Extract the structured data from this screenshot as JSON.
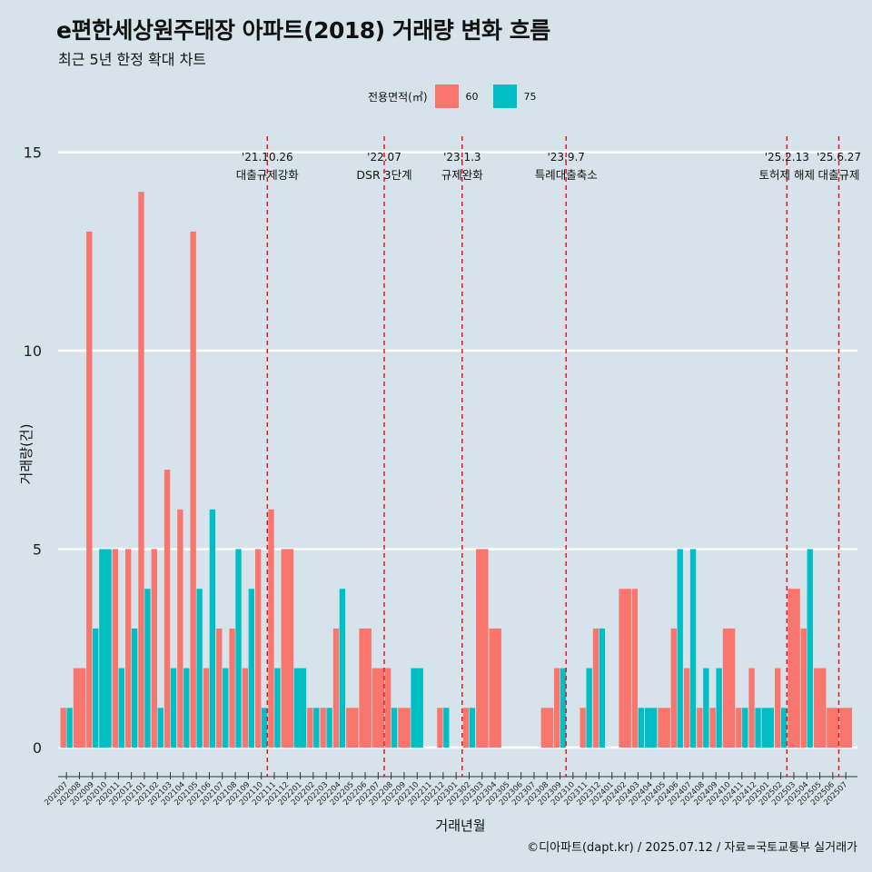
{
  "header": {
    "title": "e편한세상원주태장 아파트(2018) 거래량 변화 흐름",
    "subtitle": "최근 5년 한정 확대 차트"
  },
  "legend": {
    "title": "전용면적(㎡)",
    "items": [
      {
        "label": "60",
        "color": "#f8766d"
      },
      {
        "label": "75",
        "color": "#00bfc4"
      }
    ]
  },
  "caption": "©디아파트(dapt.kr) / 2025.07.12 / 자료=국토교통부 실거래가",
  "chart_data": {
    "type": "bar",
    "xlabel": "거래년월",
    "ylabel": "거래량(건)",
    "ylim": [
      0,
      15
    ],
    "yticks": [
      0,
      5,
      10,
      15
    ],
    "categories": [
      "202007",
      "202008",
      "202009",
      "202010",
      "202011",
      "202012",
      "202101",
      "202102",
      "202103",
      "202104",
      "202105",
      "202106",
      "202107",
      "202108",
      "202109",
      "202110",
      "202111",
      "202112",
      "202201",
      "202202",
      "202203",
      "202204",
      "202205",
      "202206",
      "202207",
      "202208",
      "202209",
      "202210",
      "202211",
      "202212",
      "202301",
      "202302",
      "202303",
      "202304",
      "202305",
      "202306",
      "202307",
      "202308",
      "202309",
      "202310",
      "202311",
      "202312",
      "202401",
      "202402",
      "202403",
      "202404",
      "202405",
      "202406",
      "202407",
      "202408",
      "202409",
      "202410",
      "202411",
      "202412",
      "202501",
      "202502",
      "202503",
      "202504",
      "202505",
      "202506",
      "202507"
    ],
    "series": [
      {
        "name": "60",
        "color": "#f8766d",
        "values": [
          1,
          2,
          13,
          0,
          5,
          5,
          14,
          5,
          7,
          6,
          13,
          2,
          3,
          3,
          2,
          5,
          6,
          5,
          0,
          1,
          1,
          3,
          1,
          3,
          2,
          2,
          1,
          0,
          0,
          1,
          0,
          1,
          5,
          3,
          0,
          0,
          0,
          1,
          2,
          0,
          1,
          3,
          0,
          4,
          4,
          0,
          1,
          3,
          2,
          1,
          1,
          3,
          1,
          2,
          0,
          2,
          4,
          3,
          2,
          1,
          1
        ]
      },
      {
        "name": "75",
        "color": "#00bfc4",
        "values": [
          1,
          0,
          3,
          5,
          2,
          3,
          4,
          1,
          2,
          2,
          4,
          6,
          2,
          5,
          4,
          1,
          2,
          0,
          2,
          1,
          1,
          4,
          0,
          0,
          0,
          1,
          0,
          2,
          0,
          1,
          0,
          1,
          0,
          0,
          0,
          0,
          0,
          0,
          2,
          0,
          2,
          3,
          0,
          0,
          1,
          1,
          0,
          5,
          5,
          2,
          2,
          0,
          1,
          1,
          1,
          1,
          0,
          5,
          0,
          0,
          0
        ]
      }
    ],
    "events": [
      {
        "after": "202110",
        "date": "'21.10.26",
        "label": "대출규제강화"
      },
      {
        "after": "202207",
        "date": "'22.07",
        "label": "DSR 3단계"
      },
      {
        "after": "202301",
        "date": "'23.1.3",
        "label": "규제완화"
      },
      {
        "after": "202309",
        "date": "'23.9.7",
        "label": "특례대출축소"
      },
      {
        "after": "202502",
        "date": "'25.2.13",
        "label": "토허제 해제"
      },
      {
        "after": "202506",
        "date": "'25.6.27",
        "label": "대출규제"
      }
    ]
  }
}
